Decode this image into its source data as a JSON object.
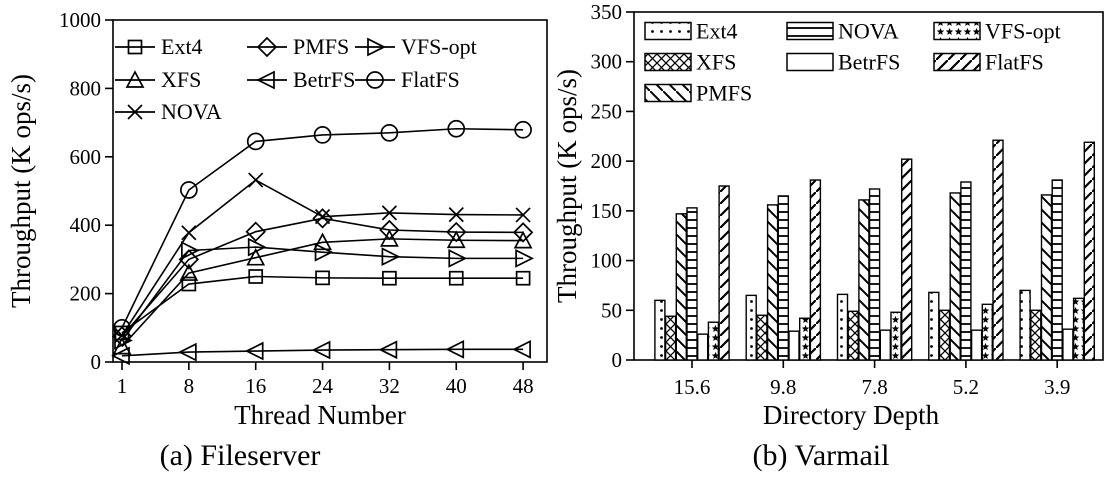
{
  "figure": {
    "background": "#ffffff",
    "ink": "#000000"
  },
  "chart_data": [
    {
      "id": "fileserver",
      "type": "line",
      "title": "(a) Fileserver",
      "xlabel": "Thread Number",
      "ylabel": "Throughput (K ops/s)",
      "x_tick_labels": [
        "1",
        "8",
        "16",
        "24",
        "32",
        "40",
        "48"
      ],
      "ylim": [
        0,
        1000
      ],
      "yticks": [
        0,
        200,
        400,
        600,
        800,
        1000
      ],
      "grid": false,
      "legend_position": "top-left-inside",
      "legend_order": [
        "Ext4",
        "PMFS",
        "VFS-opt",
        "XFS",
        "BetrFS",
        "FlatFS",
        "NOVA"
      ],
      "series": [
        {
          "name": "Ext4",
          "marker": "square",
          "values": [
            85,
            228,
            250,
            246,
            245,
            245,
            245
          ]
        },
        {
          "name": "XFS",
          "marker": "triangle-up",
          "values": [
            45,
            260,
            305,
            350,
            360,
            356,
            355
          ]
        },
        {
          "name": "NOVA",
          "marker": "x-cross",
          "values": [
            78,
            378,
            532,
            425,
            436,
            431,
            430
          ]
        },
        {
          "name": "PMFS",
          "marker": "diamond",
          "values": [
            75,
            300,
            381,
            420,
            386,
            380,
            379
          ]
        },
        {
          "name": "BetrFS",
          "marker": "triangle-left",
          "values": [
            18,
            29,
            32,
            35,
            36,
            37,
            37
          ]
        },
        {
          "name": "FlatFS",
          "marker": "circle",
          "values": [
            100,
            503,
            645,
            664,
            670,
            682,
            679
          ]
        },
        {
          "name": "VFS-opt",
          "marker": "triangle-right",
          "values": [
            63,
            326,
            336,
            321,
            308,
            303,
            303
          ]
        }
      ]
    },
    {
      "id": "varmail",
      "type": "bar",
      "title": "(b) Varmail",
      "xlabel": "Directory Depth",
      "ylabel": "Throughput (K ops/s)",
      "categories": [
        "15.6",
        "9.8",
        "7.8",
        "5.2",
        "3.9"
      ],
      "ylim": [
        0,
        350
      ],
      "yticks": [
        0,
        50,
        100,
        150,
        200,
        250,
        300,
        350
      ],
      "grid": false,
      "legend_position": "top-left-inside",
      "legend_order": [
        "Ext4",
        "NOVA",
        "VFS-opt",
        "XFS",
        "BetrFS",
        "FlatFS",
        "PMFS"
      ],
      "series": [
        {
          "name": "Ext4",
          "pattern": "dots",
          "values": [
            60,
            65,
            66,
            68,
            70
          ]
        },
        {
          "name": "XFS",
          "pattern": "crosshatch",
          "values": [
            44,
            45,
            49,
            50,
            50
          ]
        },
        {
          "name": "PMFS",
          "pattern": "diagonal-back",
          "values": [
            147,
            156,
            161,
            168,
            166
          ]
        },
        {
          "name": "NOVA",
          "pattern": "horizontal-lines",
          "values": [
            153,
            165,
            172,
            179,
            181
          ]
        },
        {
          "name": "BetrFS",
          "pattern": "plain",
          "values": [
            26,
            29,
            30,
            30,
            31
          ]
        },
        {
          "name": "VFS-opt",
          "pattern": "stars",
          "values": [
            38,
            42,
            48,
            56,
            62
          ]
        },
        {
          "name": "FlatFS",
          "pattern": "diagonal-forward",
          "values": [
            175,
            181,
            202,
            221,
            219
          ]
        }
      ]
    }
  ]
}
